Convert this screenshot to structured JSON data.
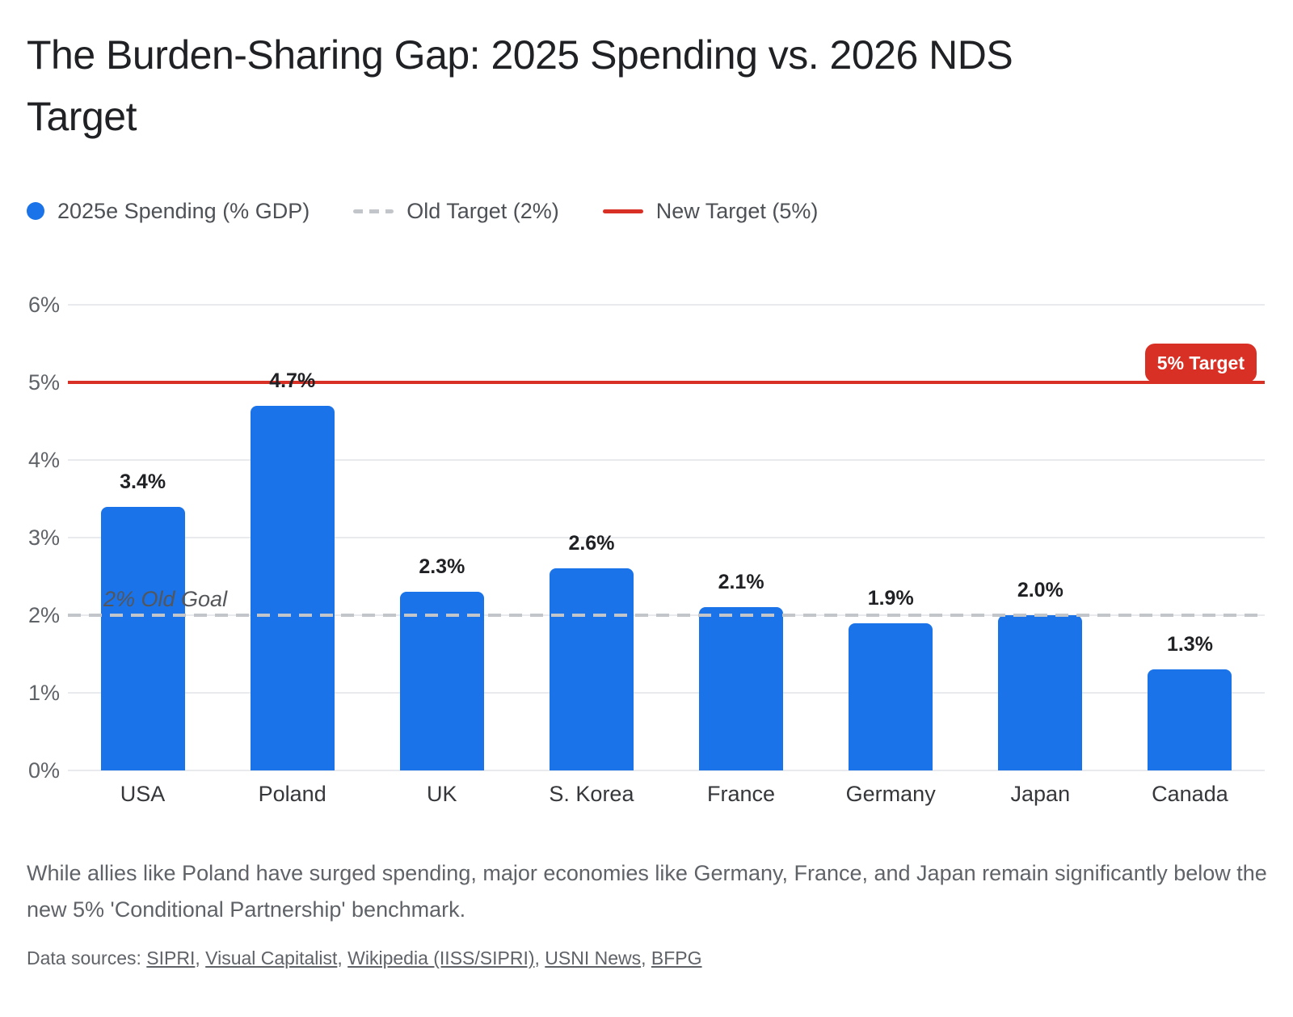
{
  "title": "The Burden-Sharing Gap: 2025 Spending vs. 2026 NDS Target",
  "colors": {
    "bar_blue": "#1a73e8",
    "target_red": "#d93025",
    "old_target_gray": "#c2c5c9",
    "grid": "#e8eaed",
    "axis_text": "#5f6368",
    "value_text": "#202124"
  },
  "legend": {
    "items": [
      {
        "label": "2025e Spending (% GDP)",
        "swatch": "dot",
        "color": "#1a73e8"
      },
      {
        "label": "Old Target (2%)",
        "swatch": "dashed-line",
        "color": "#c2c5c9"
      },
      {
        "label": "New Target (5%)",
        "swatch": "solid-line",
        "color": "#d93025"
      }
    ]
  },
  "chart_data": {
    "type": "bar",
    "title": "The Burden-Sharing Gap: 2025 Spending vs. 2026 NDS Target",
    "series_name": "2025e Spending (% GDP)",
    "categories": [
      "USA",
      "Poland",
      "UK",
      "S. Korea",
      "France",
      "Germany",
      "Japan",
      "Canada"
    ],
    "values": [
      3.4,
      4.7,
      2.3,
      2.6,
      2.1,
      1.9,
      2.0,
      1.3
    ],
    "value_labels": [
      "3.4%",
      "4.7%",
      "2.3%",
      "2.6%",
      "2.1%",
      "1.9%",
      "2.0%",
      "1.3%"
    ],
    "xlabel": "",
    "ylabel": "",
    "ylim": [
      0,
      6
    ],
    "ytick_step": 1,
    "ytick_labels": [
      "0%",
      "1%",
      "2%",
      "3%",
      "4%",
      "5%",
      "6%"
    ],
    "grid": true,
    "legend_position": "top-left",
    "bar_color": "#1a73e8",
    "reference_lines": [
      {
        "value": 2,
        "style": "dashed",
        "color": "#c2c5c9",
        "annotation": "2% Old Goal"
      },
      {
        "value": 5,
        "style": "solid",
        "color": "#d93025",
        "annotation": "5% Target"
      }
    ]
  },
  "annotations": {
    "old_goal_label": "2% Old Goal",
    "target_badge": "5% Target"
  },
  "caption": "While allies like Poland have surged spending, major economies like Germany, France, and Japan remain significantly below the new 5% 'Conditional Partnership' benchmark.",
  "sources": {
    "prefix": "Data sources: ",
    "separator": ", ",
    "links": [
      "SIPRI",
      "Visual Capitalist",
      "Wikipedia (IISS/SIPRI)",
      "USNI News",
      "BFPG"
    ]
  }
}
